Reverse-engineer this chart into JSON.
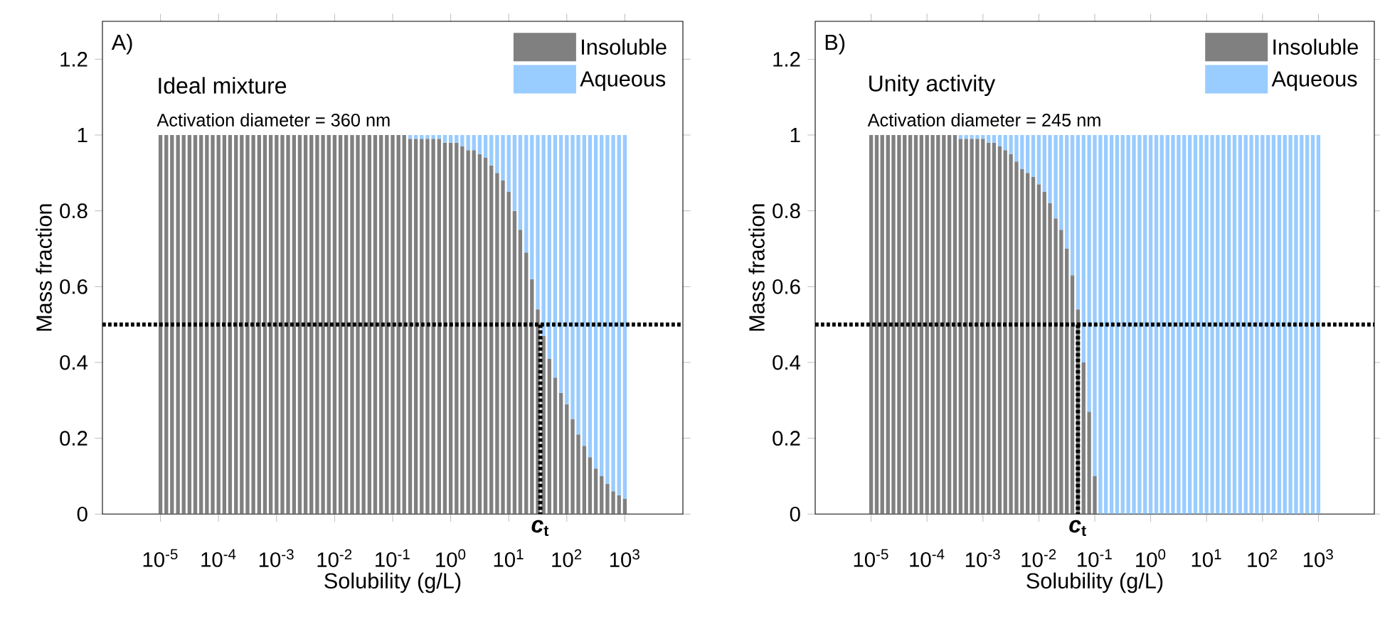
{
  "chart_data": [
    {
      "type": "bar",
      "title": "A)",
      "subtitle": "Ideal mixture",
      "xlabel": "Solubility (g/L)",
      "ylabel": "Mass fraction",
      "log": "x",
      "stacked": true,
      "legend": "top right",
      "annotations": [
        "Activation diameter = 360 nm",
        {
          "text": "*c*$_{t}$",
          "x": 35,
          "y": 0.5
        }
      ],
      "xlim": [
        1e-06,
        10000
      ],
      "ylim": [
        0,
        1.3
      ],
      "xticks": [
        {
          "value": 1e-05,
          "label": "10$^{-5}$"
        },
        {
          "value": 0.0001,
          "label": "10$^{-4}$"
        },
        {
          "value": 0.001,
          "label": "10$^{-3}$"
        },
        {
          "value": 0.01,
          "label": "10$^{-2}$"
        },
        {
          "value": 0.1,
          "label": "10$^{-1}$"
        },
        {
          "value": 1,
          "label": "10$^{0}$"
        },
        {
          "value": 10,
          "label": "10$^{1}$"
        },
        {
          "value": 100,
          "label": "10$^{2}$"
        },
        {
          "value": 1000,
          "label": "10$^{3}$"
        }
      ],
      "yticks": [
        0,
        0.2,
        0.4,
        0.6,
        0.8,
        1,
        1.2
      ],
      "x": [
        1e-05,
        1.26e-05,
        1.58e-05,
        2e-05,
        2.51e-05,
        3.16e-05,
        3.98e-05,
        5.01e-05,
        6.31e-05,
        7.94e-05,
        0.0001,
        0.000126,
        0.000158,
        0.0002,
        0.000251,
        0.000316,
        0.000398,
        0.000501,
        0.000631,
        0.000794,
        0.001,
        0.00126,
        0.00158,
        0.002,
        0.00251,
        0.00316,
        0.00398,
        0.00501,
        0.00631,
        0.00794,
        0.01,
        0.0126,
        0.0158,
        0.02,
        0.0251,
        0.0316,
        0.0398,
        0.0501,
        0.0631,
        0.0794,
        0.1,
        0.126,
        0.158,
        0.2,
        0.251,
        0.316,
        0.398,
        0.501,
        0.631,
        0.794,
        1,
        1.26,
        1.58,
        2,
        2.51,
        3.16,
        3.98,
        5.01,
        6.31,
        7.94,
        10,
        12.6,
        15.8,
        20,
        25.1,
        31.6,
        39.8,
        50.1,
        63.1,
        79.4,
        100,
        126,
        158,
        200,
        251,
        316,
        398,
        501,
        631,
        794,
        1000
      ],
      "series": [
        {
          "name": "Insoluble",
          "color": "#808080",
          "values": [
            1,
            1,
            1,
            1,
            1,
            1,
            1,
            1,
            1,
            1,
            1,
            1,
            1,
            1,
            1,
            1,
            1,
            1,
            1,
            1,
            1,
            1,
            1,
            1,
            1,
            1,
            1,
            1,
            1,
            1,
            1,
            1,
            1,
            1,
            1,
            1,
            1,
            1,
            1,
            1,
            1,
            1,
            1,
            0.99,
            0.99,
            0.99,
            0.99,
            0.99,
            0.99,
            0.98,
            0.98,
            0.98,
            0.97,
            0.96,
            0.96,
            0.95,
            0.94,
            0.92,
            0.9,
            0.88,
            0.85,
            0.8,
            0.75,
            0.69,
            0.62,
            0.54,
            0.47,
            0.41,
            0.36,
            0.32,
            0.29,
            0.25,
            0.21,
            0.18,
            0.15,
            0.12,
            0.1,
            0.08,
            0.06,
            0.05,
            0.04
          ]
        },
        {
          "name": "Aqueous",
          "color": "#99ccff",
          "values": [
            0,
            0,
            0,
            0,
            0,
            0,
            0,
            0,
            0,
            0,
            0,
            0,
            0,
            0,
            0,
            0,
            0,
            0,
            0,
            0,
            0,
            0,
            0,
            0,
            0,
            0,
            0,
            0,
            0,
            0,
            0,
            0,
            0,
            0,
            0,
            0,
            0,
            0,
            0,
            0,
            0,
            0,
            0,
            0.01,
            0.01,
            0.01,
            0.01,
            0.01,
            0.01,
            0.02,
            0.02,
            0.02,
            0.03,
            0.04,
            0.04,
            0.05,
            0.06,
            0.08,
            0.1,
            0.12,
            0.15,
            0.2,
            0.25,
            0.31,
            0.38,
            0.46,
            0.53,
            0.59,
            0.64,
            0.68,
            0.71,
            0.75,
            0.79,
            0.82,
            0.85,
            0.88,
            0.9,
            0.92,
            0.94,
            0.95,
            0.96
          ]
        }
      ],
      "ref_lines": [
        {
          "axis": "y",
          "value": 0.5,
          "color": "#000000",
          "line_style": "dotted"
        }
      ]
    },
    {
      "type": "bar",
      "title": "B)",
      "subtitle": "Unity activity",
      "xlabel": "Solubility (g/L)",
      "ylabel": "Mass fraction",
      "log": "x",
      "stacked": true,
      "legend": "top right",
      "annotations": [
        "Activation diameter = 245 nm",
        {
          "text": "*c*$_{t}$",
          "x": 0.05,
          "y": 0.5
        }
      ],
      "xlim": [
        1e-06,
        10000
      ],
      "ylim": [
        0,
        1.3
      ],
      "xticks": [
        {
          "value": 1e-05,
          "label": "10$^{-5}$"
        },
        {
          "value": 0.0001,
          "label": "10$^{-4}$"
        },
        {
          "value": 0.001,
          "label": "10$^{-3}$"
        },
        {
          "value": 0.01,
          "label": "10$^{-2}$"
        },
        {
          "value": 0.1,
          "label": "10$^{-1}$"
        },
        {
          "value": 1,
          "label": "10$^{0}$"
        },
        {
          "value": 10,
          "label": "10$^{1}$"
        },
        {
          "value": 100,
          "label": "10$^{2}$"
        },
        {
          "value": 1000,
          "label": "10$^{3}$"
        }
      ],
      "yticks": [
        0,
        0.2,
        0.4,
        0.6,
        0.8,
        1,
        1.2
      ],
      "x": [
        1e-05,
        1.26e-05,
        1.58e-05,
        2e-05,
        2.51e-05,
        3.16e-05,
        3.98e-05,
        5.01e-05,
        6.31e-05,
        7.94e-05,
        0.0001,
        0.000126,
        0.000158,
        0.0002,
        0.000251,
        0.000316,
        0.000398,
        0.000501,
        0.000631,
        0.000794,
        0.001,
        0.00126,
        0.00158,
        0.002,
        0.00251,
        0.00316,
        0.00398,
        0.00501,
        0.00631,
        0.00794,
        0.01,
        0.0126,
        0.0158,
        0.02,
        0.0251,
        0.0316,
        0.0398,
        0.0501,
        0.0631,
        0.0794,
        0.1,
        0.126,
        0.158,
        0.2,
        0.251,
        0.316,
        0.398,
        0.501,
        0.631,
        0.794,
        1,
        1.26,
        1.58,
        2,
        2.51,
        3.16,
        3.98,
        5.01,
        6.31,
        7.94,
        10,
        12.6,
        15.8,
        20,
        25.1,
        31.6,
        39.8,
        50.1,
        63.1,
        79.4,
        100,
        126,
        158,
        200,
        251,
        316,
        398,
        501,
        631,
        794,
        1000
      ],
      "series": [
        {
          "name": "Insoluble",
          "color": "#808080",
          "values": [
            1,
            1,
            1,
            1,
            1,
            1,
            1,
            1,
            1,
            1,
            1,
            1,
            1,
            1,
            1,
            1,
            0.99,
            0.99,
            0.99,
            0.99,
            0.99,
            0.98,
            0.98,
            0.97,
            0.96,
            0.95,
            0.93,
            0.91,
            0.9,
            0.89,
            0.87,
            0.85,
            0.82,
            0.78,
            0.75,
            0.7,
            0.63,
            0.54,
            0.4,
            0.27,
            0.1,
            0,
            0,
            0,
            0,
            0,
            0,
            0,
            0,
            0,
            0,
            0,
            0,
            0,
            0,
            0,
            0,
            0,
            0,
            0,
            0,
            0,
            0,
            0,
            0,
            0,
            0,
            0,
            0,
            0,
            0,
            0,
            0,
            0,
            0,
            0,
            0,
            0,
            0,
            0,
            0
          ]
        },
        {
          "name": "Aqueous",
          "color": "#99ccff",
          "values": [
            0,
            0,
            0,
            0,
            0,
            0,
            0,
            0,
            0,
            0,
            0,
            0,
            0,
            0,
            0,
            0,
            0.01,
            0.01,
            0.01,
            0.01,
            0.01,
            0.02,
            0.02,
            0.03,
            0.04,
            0.05,
            0.07,
            0.09,
            0.1,
            0.11,
            0.13,
            0.15,
            0.18,
            0.22,
            0.25,
            0.3,
            0.37,
            0.46,
            0.6,
            0.73,
            0.9,
            1,
            1,
            1,
            1,
            1,
            1,
            1,
            1,
            1,
            1,
            1,
            1,
            1,
            1,
            1,
            1,
            1,
            1,
            1,
            1,
            1,
            1,
            1,
            1,
            1,
            1,
            1,
            1,
            1,
            1,
            1,
            1,
            1,
            1,
            1,
            1,
            1,
            1,
            1,
            1
          ]
        }
      ],
      "ref_lines": [
        {
          "axis": "y",
          "value": 0.5,
          "color": "#000000",
          "line_style": "dotted"
        }
      ]
    }
  ]
}
